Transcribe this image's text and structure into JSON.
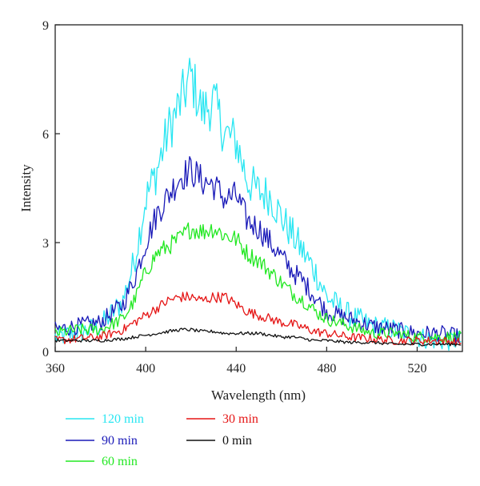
{
  "chart_data": {
    "type": "line",
    "title": "",
    "xlabel": "Wavelength (nm)",
    "ylabel": "Intensity",
    "xlim": [
      360,
      540
    ],
    "ylim": [
      0,
      9
    ],
    "xticks": [
      360,
      400,
      440,
      480,
      520
    ],
    "yticks": [
      0,
      3,
      6,
      9
    ],
    "xtick_labels": [
      "360",
      "400",
      "440",
      "480",
      "520"
    ],
    "ytick_labels": [
      "0",
      "3",
      "6",
      "9"
    ],
    "grid": false,
    "legend_position": "bottom",
    "noise": {
      "120 min": 0.55,
      "90 min": 0.4,
      "60 min": 0.3,
      "30 min": 0.22,
      "0 min": 0.08
    },
    "series": [
      {
        "name": "120 min",
        "color": "#29e6f2",
        "x": [
          360,
          370,
          380,
          390,
          395,
          400,
          405,
          410,
          415,
          420,
          425,
          430,
          435,
          440,
          445,
          450,
          455,
          460,
          465,
          470,
          475,
          480,
          490,
          500,
          510,
          520,
          530,
          540
        ],
        "y": [
          0.4,
          0.5,
          0.7,
          1.4,
          2.5,
          4.2,
          5.0,
          6.1,
          6.8,
          7.6,
          6.6,
          6.9,
          6.0,
          5.8,
          4.7,
          4.4,
          4.3,
          3.7,
          3.2,
          2.7,
          2.2,
          1.5,
          1.0,
          0.7,
          0.6,
          0.4,
          0.3,
          0.3
        ]
      },
      {
        "name": "90 min",
        "color": "#1a1ab8",
        "x": [
          360,
          370,
          380,
          390,
          395,
          400,
          405,
          410,
          415,
          420,
          425,
          430,
          435,
          440,
          445,
          450,
          455,
          460,
          465,
          470,
          475,
          480,
          490,
          500,
          510,
          520,
          530,
          540
        ],
        "y": [
          0.6,
          0.7,
          0.8,
          1.3,
          2.0,
          3.0,
          3.8,
          4.3,
          4.8,
          5.0,
          4.7,
          4.6,
          4.2,
          4.3,
          3.6,
          3.4,
          3.0,
          2.6,
          2.2,
          1.9,
          1.5,
          1.1,
          0.9,
          0.7,
          0.6,
          0.5,
          0.5,
          0.4
        ]
      },
      {
        "name": "60 min",
        "color": "#22e822",
        "x": [
          360,
          370,
          380,
          390,
          395,
          400,
          405,
          410,
          415,
          420,
          425,
          430,
          435,
          440,
          445,
          450,
          455,
          460,
          465,
          470,
          475,
          480,
          490,
          500,
          510,
          520,
          530,
          540
        ],
        "y": [
          0.5,
          0.6,
          0.6,
          0.9,
          1.4,
          2.2,
          2.7,
          2.9,
          3.1,
          3.4,
          3.3,
          3.4,
          3.2,
          3.1,
          2.7,
          2.5,
          2.2,
          1.9,
          1.6,
          1.4,
          1.1,
          0.9,
          0.7,
          0.5,
          0.5,
          0.4,
          0.4,
          0.4
        ]
      },
      {
        "name": "30 min",
        "color": "#e51515",
        "x": [
          360,
          370,
          380,
          390,
          395,
          400,
          405,
          410,
          415,
          420,
          425,
          430,
          435,
          440,
          445,
          450,
          455,
          460,
          465,
          470,
          475,
          480,
          490,
          500,
          510,
          520,
          530,
          540
        ],
        "y": [
          0.3,
          0.35,
          0.4,
          0.6,
          0.8,
          1.0,
          1.2,
          1.4,
          1.5,
          1.5,
          1.4,
          1.5,
          1.5,
          1.3,
          1.1,
          1.0,
          0.9,
          0.8,
          0.75,
          0.65,
          0.55,
          0.5,
          0.4,
          0.35,
          0.3,
          0.3,
          0.3,
          0.25
        ]
      },
      {
        "name": "0 min",
        "color": "#111111",
        "x": [
          360,
          370,
          380,
          390,
          395,
          400,
          405,
          410,
          415,
          420,
          425,
          430,
          435,
          440,
          445,
          450,
          455,
          460,
          465,
          470,
          475,
          480,
          490,
          500,
          510,
          520,
          530,
          540
        ],
        "y": [
          0.3,
          0.3,
          0.3,
          0.35,
          0.4,
          0.45,
          0.5,
          0.55,
          0.6,
          0.6,
          0.55,
          0.55,
          0.5,
          0.5,
          0.5,
          0.5,
          0.45,
          0.4,
          0.4,
          0.35,
          0.3,
          0.3,
          0.25,
          0.25,
          0.2,
          0.2,
          0.2,
          0.2
        ]
      }
    ]
  }
}
